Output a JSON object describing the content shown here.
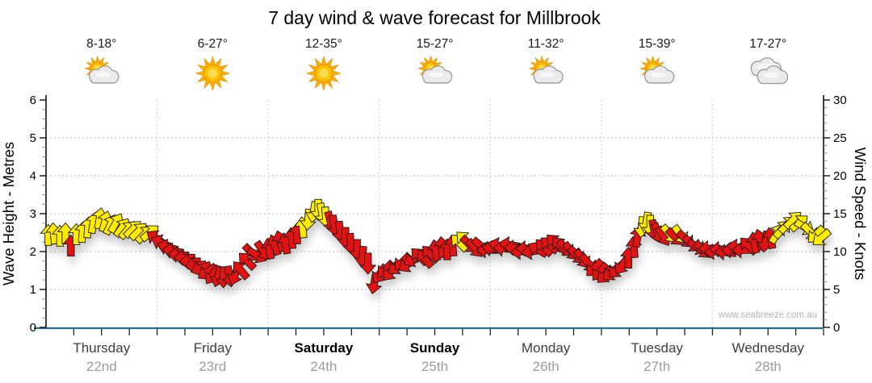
{
  "title": "7 day wind & wave forecast for Millbrook",
  "watermark": "www.seabreeze.com.au",
  "days": [
    {
      "name": "Thursday",
      "date": "22nd",
      "temp_range": "8-18°",
      "icon": "sun-cloud",
      "weekend": false
    },
    {
      "name": "Friday",
      "date": "23rd",
      "temp_range": "6-27°",
      "icon": "sun",
      "weekend": false
    },
    {
      "name": "Saturday",
      "date": "24th",
      "temp_range": "12-35°",
      "icon": "sun",
      "weekend": true
    },
    {
      "name": "Sunday",
      "date": "25th",
      "temp_range": "15-27°",
      "icon": "sun-cloud",
      "weekend": true
    },
    {
      "name": "Monday",
      "date": "26th",
      "temp_range": "11-32°",
      "icon": "sun-cloud",
      "weekend": false
    },
    {
      "name": "Tuesday",
      "date": "27th",
      "temp_range": "15-39°",
      "icon": "sun-cloud",
      "weekend": false
    },
    {
      "name": "Wednesday",
      "date": "28th",
      "temp_range": "17-27°",
      "icon": "clouds",
      "weekend": false
    }
  ],
  "chart_data": {
    "type": "wind-arrow-timeseries",
    "title": "7 day wind & wave forecast for Millbrook",
    "left_axis": {
      "label": "Wave Height - Metres",
      "min": 0,
      "max": 6,
      "major": 1,
      "minor": 0.25
    },
    "right_axis": {
      "label": "Wind Speed - Knots",
      "min": 0,
      "max": 30,
      "major": 5,
      "minor": 1
    },
    "days_span": 7,
    "minor_x_ticks_per_day": 4,
    "grid": {
      "horizontal_at_knots": [
        5,
        10,
        15,
        20,
        25
      ],
      "vertical_at_day_boundaries": true,
      "style": "dotted"
    },
    "colors": {
      "yellow_arrow": "#FFEB00",
      "red_arrow": "#E51212",
      "arrow_outline": "#1a1a1a",
      "x_axis_line": "#2A6B8F",
      "grid_line": "#BDBDBD",
      "axis_line": "#111111"
    },
    "arrow_format": [
      "x_percent_of_plot",
      "wind_speed_knots",
      "direction_deg_clockwise_from_up",
      "color Y=yellow R=red"
    ],
    "arrows": [
      [
        0.3,
        12.2,
        0,
        "Y"
      ],
      [
        1.0,
        12.4,
        355,
        "Y"
      ],
      [
        1.8,
        12.1,
        0,
        "Y"
      ],
      [
        2.5,
        12.4,
        0,
        "Y"
      ],
      [
        3.2,
        10.8,
        0,
        "R"
      ],
      [
        3.9,
        12.3,
        0,
        "Y"
      ],
      [
        4.7,
        12.6,
        5,
        "Y"
      ],
      [
        5.4,
        13.2,
        5,
        "Y"
      ],
      [
        6.1,
        13.8,
        10,
        "Y"
      ],
      [
        6.9,
        14.4,
        10,
        "Y"
      ],
      [
        7.6,
        14.0,
        15,
        "Y"
      ],
      [
        8.3,
        13.6,
        25,
        "Y"
      ],
      [
        9.0,
        13.8,
        30,
        "Y"
      ],
      [
        9.8,
        13.2,
        35,
        "Y"
      ],
      [
        10.5,
        12.9,
        40,
        "Y"
      ],
      [
        11.2,
        13.0,
        45,
        "Y"
      ],
      [
        11.9,
        12.7,
        45,
        "Y"
      ],
      [
        12.7,
        12.3,
        45,
        "Y"
      ],
      [
        13.4,
        12.5,
        50,
        "Y"
      ],
      [
        14.1,
        11.8,
        305,
        "R"
      ],
      [
        14.8,
        11.2,
        295,
        "R"
      ],
      [
        15.6,
        10.6,
        285,
        "R"
      ],
      [
        16.3,
        10.1,
        280,
        "R"
      ],
      [
        17.0,
        9.6,
        275,
        "R"
      ],
      [
        17.8,
        9.2,
        270,
        "R"
      ],
      [
        18.5,
        8.7,
        270,
        "R"
      ],
      [
        19.2,
        8.2,
        265,
        "R"
      ],
      [
        19.9,
        7.8,
        250,
        "R"
      ],
      [
        20.7,
        7.3,
        235,
        "R"
      ],
      [
        21.4,
        6.9,
        215,
        "R"
      ],
      [
        22.1,
        6.7,
        195,
        "R"
      ],
      [
        22.8,
        6.6,
        180,
        "R"
      ],
      [
        23.6,
        6.7,
        170,
        "R"
      ],
      [
        24.3,
        6.9,
        200,
        "R"
      ],
      [
        25.0,
        7.6,
        320,
        "R"
      ],
      [
        25.8,
        8.8,
        315,
        "R"
      ],
      [
        26.5,
        9.8,
        135,
        "R"
      ],
      [
        27.2,
        9.5,
        120,
        "R"
      ],
      [
        27.9,
        10.1,
        145,
        "R"
      ],
      [
        28.7,
        10.4,
        350,
        "R"
      ],
      [
        29.4,
        10.9,
        340,
        "R"
      ],
      [
        30.1,
        11.4,
        345,
        "R"
      ],
      [
        30.8,
        11.1,
        350,
        "R"
      ],
      [
        31.6,
        11.8,
        355,
        "R"
      ],
      [
        32.3,
        12.4,
        0,
        "R"
      ],
      [
        33.0,
        13.2,
        355,
        "Y"
      ],
      [
        33.7,
        14.2,
        185,
        "Y"
      ],
      [
        34.4,
        15.2,
        190,
        "Y"
      ],
      [
        35.0,
        15.5,
        180,
        "Y"
      ],
      [
        35.5,
        15.0,
        170,
        "Y"
      ],
      [
        36.0,
        14.5,
        175,
        "Y"
      ],
      [
        36.6,
        13.9,
        165,
        "R"
      ],
      [
        37.1,
        13.4,
        170,
        "R"
      ],
      [
        37.8,
        12.6,
        175,
        "R"
      ],
      [
        38.5,
        11.8,
        180,
        "R"
      ],
      [
        39.2,
        11.0,
        175,
        "R"
      ],
      [
        40.0,
        10.2,
        180,
        "R"
      ],
      [
        40.7,
        9.3,
        185,
        "R"
      ],
      [
        41.4,
        8.4,
        180,
        "R"
      ],
      [
        42.2,
        5.8,
        190,
        "R"
      ],
      [
        42.9,
        7.0,
        215,
        "R"
      ],
      [
        43.6,
        7.6,
        225,
        "R"
      ],
      [
        44.3,
        7.3,
        220,
        "R"
      ],
      [
        45.1,
        8.0,
        230,
        "R"
      ],
      [
        45.8,
        8.6,
        225,
        "R"
      ],
      [
        46.5,
        8.3,
        235,
        "R"
      ],
      [
        47.2,
        9.0,
        240,
        "R"
      ],
      [
        48.0,
        9.4,
        315,
        "R"
      ],
      [
        48.7,
        9.1,
        320,
        "R"
      ],
      [
        49.4,
        9.7,
        315,
        "R"
      ],
      [
        50.1,
        10.2,
        350,
        "R"
      ],
      [
        50.9,
        10.6,
        355,
        "R"
      ],
      [
        51.6,
        10.3,
        0,
        "R"
      ],
      [
        52.3,
        10.8,
        355,
        "R"
      ],
      [
        53.1,
        11.2,
        315,
        "Y"
      ],
      [
        53.8,
        11.6,
        315,
        "Y"
      ],
      [
        54.5,
        10.9,
        135,
        "R"
      ],
      [
        55.2,
        10.4,
        140,
        "R"
      ],
      [
        56.0,
        10.7,
        130,
        "R"
      ],
      [
        56.7,
        10.2,
        270,
        "R"
      ],
      [
        57.4,
        10.4,
        280,
        "R"
      ],
      [
        58.2,
        10.8,
        285,
        "R"
      ],
      [
        58.9,
        10.4,
        275,
        "R"
      ],
      [
        59.6,
        10.9,
        280,
        "R"
      ],
      [
        60.3,
        10.5,
        270,
        "R"
      ],
      [
        61.1,
        10.0,
        265,
        "R"
      ],
      [
        61.8,
        10.4,
        270,
        "R"
      ],
      [
        62.5,
        10.0,
        260,
        "R"
      ],
      [
        63.2,
        10.3,
        300,
        "R"
      ],
      [
        64.0,
        10.6,
        315,
        "R"
      ],
      [
        64.7,
        10.9,
        310,
        "R"
      ],
      [
        65.4,
        11.2,
        315,
        "R"
      ],
      [
        66.1,
        10.8,
        320,
        "R"
      ],
      [
        66.9,
        10.4,
        135,
        "R"
      ],
      [
        67.6,
        10.0,
        140,
        "R"
      ],
      [
        68.3,
        9.5,
        135,
        "R"
      ],
      [
        69.0,
        9.0,
        145,
        "R"
      ],
      [
        69.8,
        8.4,
        140,
        "R"
      ],
      [
        70.5,
        7.8,
        225,
        "R"
      ],
      [
        71.2,
        7.3,
        220,
        "R"
      ],
      [
        71.9,
        6.9,
        225,
        "R"
      ],
      [
        72.7,
        7.2,
        230,
        "R"
      ],
      [
        73.4,
        7.6,
        225,
        "R"
      ],
      [
        74.1,
        8.2,
        215,
        "R"
      ],
      [
        74.9,
        9.2,
        0,
        "R"
      ],
      [
        75.6,
        10.6,
        355,
        "R"
      ],
      [
        76.1,
        12.0,
        10,
        "R"
      ],
      [
        76.6,
        13.2,
        185,
        "Y"
      ],
      [
        77.2,
        13.8,
        190,
        "Y"
      ],
      [
        77.7,
        13.4,
        180,
        "Y"
      ],
      [
        78.2,
        12.8,
        170,
        "R"
      ],
      [
        78.7,
        12.4,
        160,
        "R"
      ],
      [
        79.4,
        12.0,
        150,
        "R"
      ],
      [
        80.2,
        12.3,
        140,
        "Y"
      ],
      [
        80.9,
        11.9,
        135,
        "R"
      ],
      [
        81.6,
        12.2,
        145,
        "Y"
      ],
      [
        82.3,
        11.6,
        135,
        "R"
      ],
      [
        83.1,
        11.0,
        130,
        "R"
      ],
      [
        83.8,
        10.6,
        120,
        "R"
      ],
      [
        84.5,
        10.2,
        135,
        "R"
      ],
      [
        85.3,
        10.4,
        270,
        "R"
      ],
      [
        86.0,
        10.0,
        265,
        "R"
      ],
      [
        86.7,
        10.3,
        270,
        "R"
      ],
      [
        87.4,
        9.9,
        275,
        "R"
      ],
      [
        88.2,
        10.2,
        270,
        "R"
      ],
      [
        88.9,
        10.6,
        280,
        "R"
      ],
      [
        89.6,
        10.2,
        270,
        "R"
      ],
      [
        90.3,
        10.8,
        315,
        "R"
      ],
      [
        91.1,
        11.2,
        350,
        "R"
      ],
      [
        91.8,
        11.6,
        345,
        "R"
      ],
      [
        92.5,
        11.3,
        190,
        "R"
      ],
      [
        93.2,
        11.8,
        350,
        "R"
      ],
      [
        94.0,
        12.4,
        30,
        "Y"
      ],
      [
        94.7,
        13.0,
        40,
        "Y"
      ],
      [
        95.4,
        13.6,
        45,
        "Y"
      ],
      [
        96.1,
        14.2,
        45,
        "Y"
      ],
      [
        96.9,
        13.8,
        50,
        "Y"
      ],
      [
        97.6,
        13.2,
        120,
        "Y"
      ],
      [
        98.3,
        12.6,
        135,
        "Y"
      ],
      [
        99.0,
        12.2,
        225,
        "Y"
      ],
      [
        99.7,
        11.8,
        230,
        "Y"
      ]
    ]
  }
}
